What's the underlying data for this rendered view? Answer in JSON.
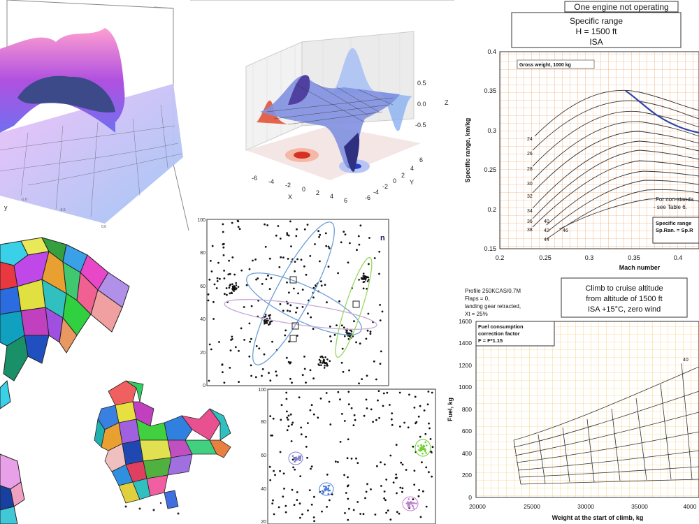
{
  "surface_plot_1": {
    "ylabel": "y",
    "ticks": [
      "-1.0",
      "-0.5",
      "0.0"
    ]
  },
  "surface_plot_2": {
    "z_ticks": [
      "0.5",
      "0.0",
      "-0.5"
    ],
    "z_label": "Z",
    "x_ticks": [
      "-6",
      "-4",
      "-2",
      "0",
      "2",
      "4",
      "6"
    ],
    "x_label": "X",
    "y_ticks": [
      "6",
      "4",
      "2",
      "0",
      "-2",
      "-4",
      "-6"
    ],
    "y_label": "Y"
  },
  "specific_range_chart": {
    "header": "One engine not operating",
    "title_line1": "Specific range",
    "title_line2": "H = 1500 ft",
    "title_line3": "ISA",
    "legend_title": "Gross weight, 1000 kg",
    "note_line1": "For non-standa",
    "note_line2": "- see Table 6.",
    "box_line1": "Specific range",
    "box_line2": "Sp.Ran. = Sp.R",
    "xlabel": "Mach number",
    "ylabel": "Specific range, km/kg",
    "x_ticks": [
      "0.2",
      "0.25",
      "0.3",
      "0.35",
      "0.4"
    ],
    "y_ticks": [
      "0.4",
      "0.35",
      "0.3",
      "0.25",
      "0.2",
      "0.15"
    ],
    "curve_labels": [
      "24",
      "26",
      "28",
      "30",
      "32",
      "34",
      "36",
      "38",
      "40",
      "42",
      "44",
      "46"
    ]
  },
  "cluster_plot_1": {
    "y_ticks": [
      "100",
      "80",
      "60",
      "40",
      "20",
      "0"
    ],
    "edge_label": "n"
  },
  "cluster_plot_2": {
    "y_ticks": [
      "100",
      "80",
      "60",
      "40",
      "20"
    ]
  },
  "climb_chart": {
    "profile_line1": "Profile 250KCAS/0.7M",
    "profile_line2": "Flaps = 0,",
    "profile_line3": "landing gear retracted,",
    "profile_line4": "Xt = 25%",
    "title_line1": "Climb to cruise altitude",
    "title_line2": "from altitude of 1500 ft",
    "title_line3": "ISA +15°C, zero wind",
    "factor_line1": "Fuel consumption",
    "factor_line2": "correction factor",
    "factor_line3": "F = F*1.15",
    "curve_label": "40",
    "xlabel": "Weight at the start of climb, kg",
    "ylabel": "Fuel, kg",
    "x_ticks": [
      "20000",
      "25000",
      "30000",
      "35000",
      "4000"
    ],
    "y_ticks": [
      "1600",
      "1400",
      "1200",
      "1000",
      "800",
      "600",
      "400",
      "200",
      "0"
    ]
  },
  "colors": {
    "grid_orange": "#f08a3c",
    "grid_yellow": "#f5b942",
    "curve_blue": "#2a44a8",
    "surface_purple": "#a040d8",
    "surface_blue": "#8fb4f0",
    "surface_red": "#e05030"
  }
}
